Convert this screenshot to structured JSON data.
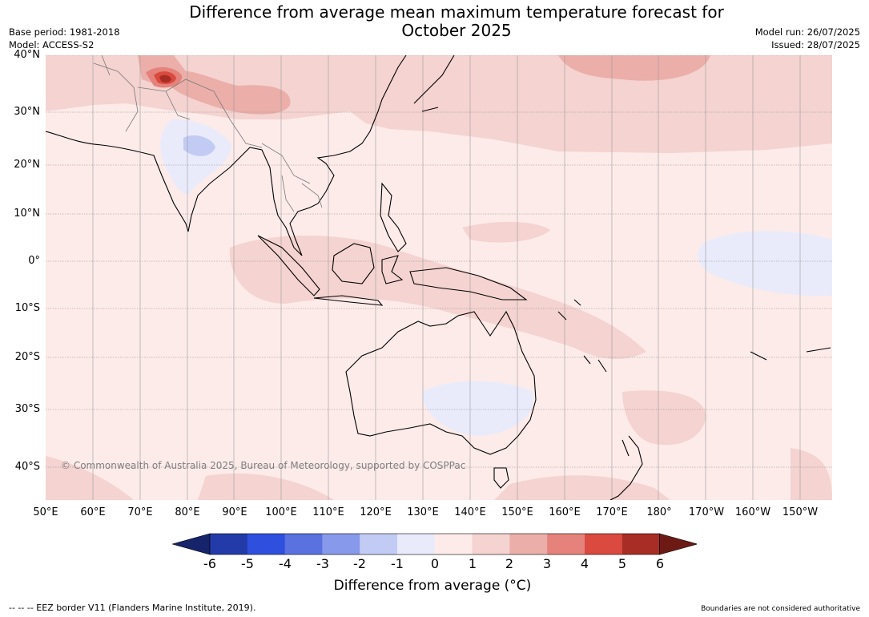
{
  "title_line1": "Difference from average mean maximum temperature forecast for",
  "title_line2": "October 2025",
  "meta_left": {
    "base_period": "Base period: 1981-2018",
    "model": "Model: ACCESS-S2"
  },
  "meta_right": {
    "model_run": "Model run: 26/07/2025",
    "issued": "Issued: 28/07/2025"
  },
  "map": {
    "lat_labels": [
      "40°N",
      "30°N",
      "20°N",
      "10°N",
      "0°",
      "10°S",
      "20°S",
      "30°S",
      "40°S"
    ],
    "lon_labels": [
      "50°E",
      "60°E",
      "70°E",
      "80°E",
      "90°E",
      "100°E",
      "110°E",
      "120°E",
      "130°E",
      "140°E",
      "150°E",
      "160°E",
      "170°E",
      "180°",
      "170°W",
      "160°W",
      "150°W"
    ],
    "copyright": "© Commonwealth of Australia 2025, Bureau of Meteorology, supported by COSPPac"
  },
  "colorbar": {
    "ticks": [
      "-6",
      "-5",
      "-4",
      "-3",
      "-2",
      "-1",
      "0",
      "1",
      "2",
      "3",
      "4",
      "5",
      "6"
    ],
    "colors": [
      "#16246b",
      "#233ba8",
      "#2f50de",
      "#5a71e0",
      "#8799ea",
      "#c2cbf3",
      "#e9ebfb",
      "#fcebe9",
      "#f4d3d0",
      "#ebaea9",
      "#e4827b",
      "#da4a3f",
      "#a82d24",
      "#6e1a14"
    ],
    "title": "Difference from average (°C)"
  },
  "footer": {
    "left": "--  --  -- EEZ border V11 (Flanders Marine Institute, 2019).",
    "right": "Boundaries are not considered authoritative"
  }
}
